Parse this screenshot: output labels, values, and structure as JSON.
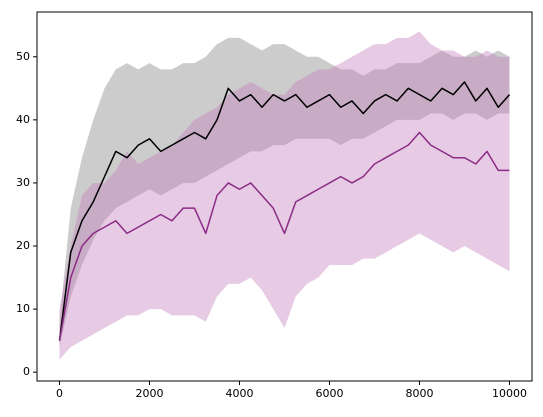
{
  "chart_data": {
    "type": "line",
    "x": [
      0,
      250,
      500,
      750,
      1000,
      1250,
      1500,
      1750,
      2000,
      2250,
      2500,
      2750,
      3000,
      3250,
      3500,
      3750,
      4000,
      4250,
      4500,
      4750,
      5000,
      5250,
      5500,
      5750,
      6000,
      6250,
      6500,
      6750,
      7000,
      7250,
      7500,
      7750,
      8000,
      8250,
      8500,
      8750,
      9000,
      9250,
      9500,
      9750,
      10000
    ],
    "series": [
      {
        "color": "#000000",
        "band_color": "#7f7f7f",
        "values": [
          5,
          19,
          24,
          27,
          31,
          35,
          34,
          36,
          37,
          35,
          36,
          37,
          38,
          37,
          40,
          45,
          43,
          44,
          42,
          44,
          43,
          44,
          42,
          43,
          44,
          42,
          43,
          41,
          43,
          44,
          43,
          45,
          44,
          43,
          45,
          44,
          46,
          43,
          45,
          42,
          44
        ],
        "upper": [
          8,
          26,
          34,
          40,
          45,
          48,
          49,
          48,
          49,
          48,
          48,
          49,
          49,
          50,
          52,
          53,
          53,
          52,
          51,
          52,
          52,
          51,
          50,
          50,
          49,
          48,
          48,
          47,
          48,
          48,
          49,
          49,
          49,
          50,
          51,
          50,
          50,
          51,
          50,
          51,
          50
        ],
        "lower": [
          4,
          12,
          17,
          21,
          24,
          26,
          27,
          28,
          29,
          28,
          29,
          30,
          30,
          31,
          32,
          33,
          34,
          35,
          35,
          36,
          36,
          37,
          37,
          37,
          37,
          36,
          37,
          37,
          38,
          39,
          40,
          40,
          40,
          41,
          41,
          40,
          41,
          41,
          40,
          41,
          41
        ]
      },
      {
        "color": "#8b2c87",
        "band_color": "#c27ab8",
        "values": [
          5,
          15,
          20,
          22,
          23,
          24,
          22,
          23,
          24,
          25,
          24,
          26,
          26,
          22,
          28,
          30,
          29,
          30,
          28,
          26,
          22,
          27,
          28,
          29,
          30,
          31,
          30,
          31,
          33,
          34,
          35,
          36,
          38,
          36,
          35,
          34,
          34,
          33,
          35,
          32,
          32
        ],
        "upper": [
          10,
          20,
          28,
          30,
          30,
          32,
          35,
          33,
          34,
          35,
          36,
          38,
          40,
          41,
          42,
          44,
          45,
          46,
          45,
          44,
          44,
          46,
          47,
          48,
          48,
          49,
          50,
          51,
          52,
          52,
          53,
          53,
          54,
          52,
          51,
          51,
          50,
          50,
          51,
          50,
          50
        ],
        "lower": [
          2,
          4,
          5,
          6,
          7,
          8,
          9,
          9,
          10,
          10,
          9,
          9,
          9,
          8,
          12,
          14,
          14,
          15,
          13,
          10,
          7,
          12,
          14,
          15,
          17,
          17,
          17,
          18,
          18,
          19,
          20,
          21,
          22,
          21,
          20,
          19,
          20,
          19,
          18,
          17,
          16
        ]
      }
    ],
    "band_opacity": 0.4,
    "xlim": [
      -500,
      10500
    ],
    "xticks": [
      0,
      2000,
      4000,
      6000,
      8000,
      10000
    ],
    "ylim": [
      -1.4,
      57.1
    ],
    "yticks": [
      0,
      10,
      20,
      30,
      40,
      50
    ],
    "grid": false
  }
}
